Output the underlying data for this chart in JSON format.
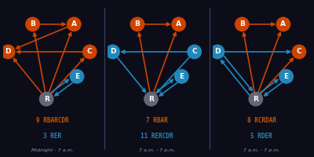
{
  "bg_color": "#0d0d1a",
  "panels": [
    {
      "title_line1": "9 RBARCDR",
      "title_line2": "3 RER",
      "subtitle": "Midnight - 7 a.m.",
      "nodes": {
        "B": [
          0.3,
          0.86,
          "orange"
        ],
        "A": [
          0.72,
          0.86,
          "orange"
        ],
        "D": [
          0.05,
          0.58,
          "orange"
        ],
        "C": [
          0.88,
          0.58,
          "orange"
        ],
        "E": [
          0.75,
          0.33,
          "blue"
        ],
        "R": [
          0.44,
          0.1,
          "gray"
        ]
      },
      "arrows_orange": [
        [
          "B",
          "A"
        ],
        [
          "A",
          "D"
        ],
        [
          "C",
          "D"
        ],
        [
          "R",
          "B"
        ],
        [
          "R",
          "A"
        ],
        [
          "R",
          "C"
        ],
        [
          "R",
          "D"
        ]
      ],
      "arrows_blue": [
        [
          "R",
          "E"
        ],
        [
          "E",
          "R"
        ]
      ]
    },
    {
      "title_line1": "7 RBAR",
      "title_line2": "11 RERCDR",
      "subtitle": "7 a.m. - 7 p.m.",
      "nodes": {
        "B": [
          0.3,
          0.86,
          "orange"
        ],
        "A": [
          0.72,
          0.86,
          "orange"
        ],
        "D": [
          0.05,
          0.58,
          "blue"
        ],
        "C": [
          0.88,
          0.58,
          "blue"
        ],
        "E": [
          0.75,
          0.33,
          "blue"
        ],
        "R": [
          0.44,
          0.1,
          "gray"
        ]
      },
      "arrows_orange": [
        [
          "B",
          "A"
        ],
        [
          "R",
          "B"
        ],
        [
          "R",
          "A"
        ]
      ],
      "arrows_blue": [
        [
          "C",
          "D"
        ],
        [
          "C",
          "R"
        ],
        [
          "D",
          "R"
        ],
        [
          "R",
          "E"
        ],
        [
          "E",
          "R"
        ]
      ]
    },
    {
      "title_line1": "8 RCRDAR",
      "title_line2": "5 RDER",
      "subtitle": "7 a.m. - 7 p.m.",
      "nodes": {
        "B": [
          0.3,
          0.86,
          "orange"
        ],
        "A": [
          0.72,
          0.86,
          "orange"
        ],
        "D": [
          0.05,
          0.58,
          "blue"
        ],
        "C": [
          0.88,
          0.58,
          "orange"
        ],
        "E": [
          0.75,
          0.33,
          "blue"
        ],
        "R": [
          0.44,
          0.1,
          "gray"
        ]
      },
      "arrows_orange": [
        [
          "B",
          "A"
        ],
        [
          "R",
          "B"
        ],
        [
          "R",
          "A"
        ],
        [
          "R",
          "C"
        ]
      ],
      "arrows_blue": [
        [
          "D",
          "C"
        ],
        [
          "D",
          "R"
        ],
        [
          "R",
          "D"
        ],
        [
          "R",
          "E"
        ],
        [
          "E",
          "R"
        ]
      ]
    }
  ],
  "orange_node_color": "#cc4400",
  "blue_node_color": "#2288bb",
  "gray_node_color": "#666677",
  "orange_arrow_color": "#cc4400",
  "blue_arrow_color": "#2288bb",
  "font_color_orange": "#cc5500",
  "font_color_blue": "#2288bb",
  "font_color_gray": "#8899aa"
}
